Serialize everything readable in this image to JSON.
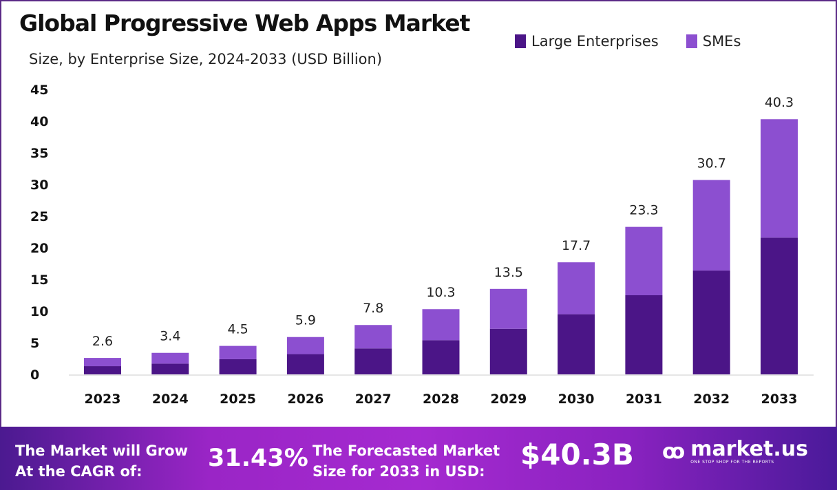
{
  "chart_data": {
    "type": "bar",
    "stacked": true,
    "title": "Global Progressive Web Apps Market",
    "subtitle": "Size, by Enterprise Size, 2024-2033 (USD Billion)",
    "xlabel": "",
    "ylabel": "",
    "ylim": [
      0,
      45
    ],
    "yticks": [
      0,
      5,
      10,
      15,
      20,
      25,
      30,
      35,
      40,
      45
    ],
    "categories": [
      "2023",
      "2024",
      "2025",
      "2026",
      "2027",
      "2028",
      "2029",
      "2030",
      "2031",
      "2032",
      "2033"
    ],
    "series": [
      {
        "name": "Large Enterprises",
        "color": "#4b1587",
        "values": [
          1.3,
          1.7,
          2.4,
          3.2,
          4.1,
          5.4,
          7.2,
          9.5,
          12.5,
          16.4,
          21.6
        ]
      },
      {
        "name": "SMEs",
        "color": "#8c4fd0",
        "values": [
          1.3,
          1.7,
          2.1,
          2.7,
          3.7,
          4.9,
          6.3,
          8.2,
          10.8,
          14.3,
          18.7
        ]
      }
    ],
    "totals": [
      "2.6",
      "3.4",
      "4.5",
      "5.9",
      "7.8",
      "10.3",
      "13.5",
      "17.7",
      "23.3",
      "30.7",
      "40.3"
    ],
    "legend_position": "top-right",
    "grid": false
  },
  "footer": {
    "cagr_label_1": "The Market will Grow",
    "cagr_label_2": "At the CAGR of:",
    "cagr_value": "31.43%",
    "forecast_label_1": "The Forecasted Market",
    "forecast_label_2": "Size for 2033 in USD:",
    "forecast_value": "$40.3B",
    "logo_text": "market.us",
    "logo_tagline": "ONE STOP SHOP FOR THE REPORTS"
  }
}
